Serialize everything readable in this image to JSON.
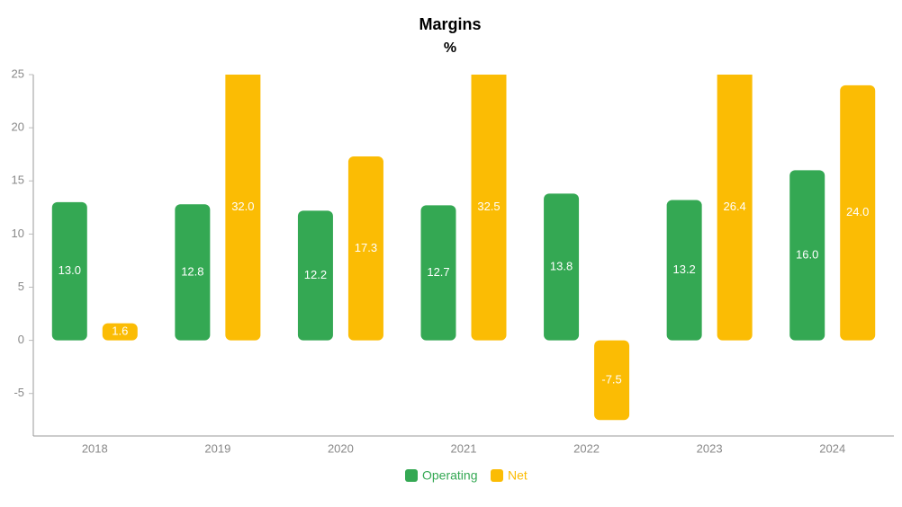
{
  "chart_data": {
    "type": "bar",
    "title": "Margins",
    "subtitle": "%",
    "categories": [
      "2018",
      "2019",
      "2020",
      "2021",
      "2022",
      "2023",
      "2024"
    ],
    "series": [
      {
        "name": "Operating",
        "color": "#34a853",
        "values": [
          13.0,
          12.8,
          12.2,
          12.7,
          13.8,
          13.2,
          16.0
        ],
        "value_labels": [
          "13.0",
          "12.8",
          "12.2",
          "12.7",
          "13.8",
          "13.2",
          "16.0"
        ]
      },
      {
        "name": "Net",
        "color": "#fbbc04",
        "values": [
          1.6,
          32.0,
          17.3,
          32.5,
          -7.5,
          26.4,
          24.0
        ],
        "value_labels": [
          "1.6",
          "32.0",
          "17.3",
          "32.5",
          "-7.5",
          "26.4",
          "24.0"
        ]
      }
    ],
    "ylim": [
      -9,
      25
    ],
    "yticks": [
      -5,
      0,
      5,
      10,
      15,
      20,
      25
    ],
    "grid": false,
    "legend": "bottom"
  }
}
